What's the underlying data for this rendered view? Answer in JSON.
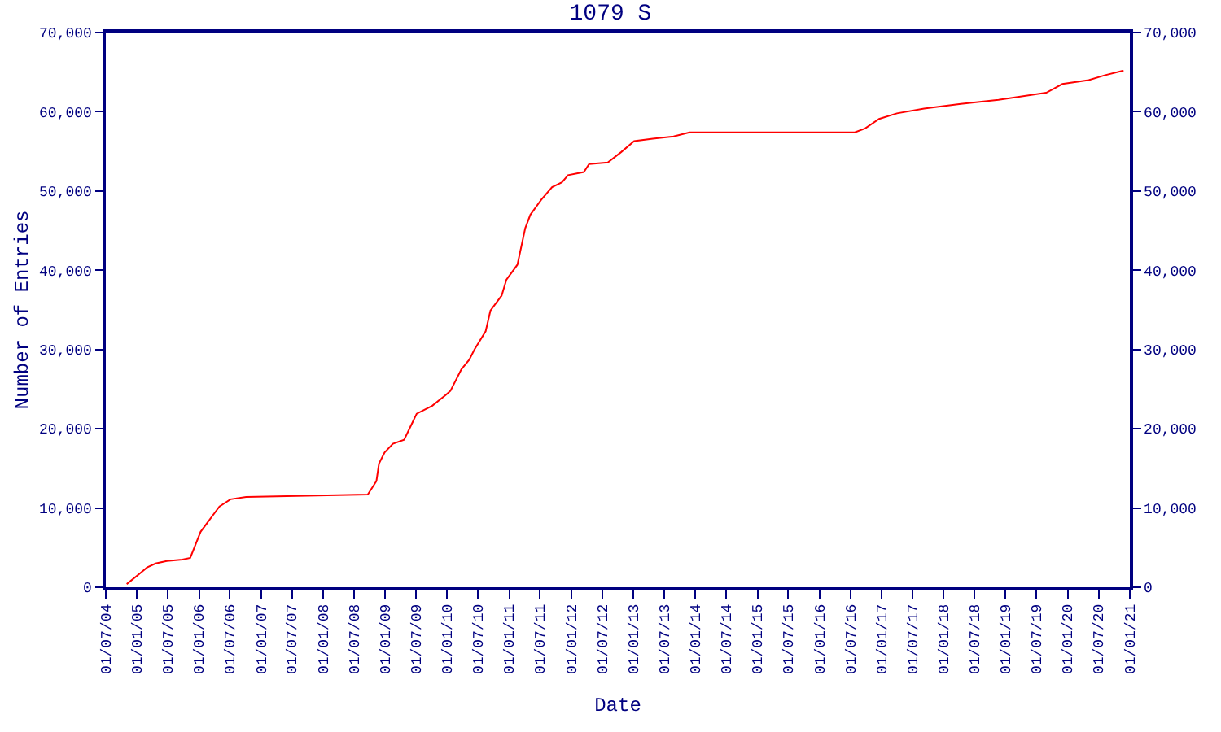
{
  "chart_data": {
    "type": "line",
    "title": "1079 S",
    "xlabel": "Date",
    "ylabel": "Number of Entries",
    "x": [
      "2004-11-01",
      "2005-01-15",
      "2005-03-01",
      "2005-04-20",
      "2005-06-25",
      "2005-09-25",
      "2005-11-10",
      "2006-01-10",
      "2006-05-01",
      "2006-07-05",
      "2006-10-05",
      "2008-09-20",
      "2008-11-10",
      "2008-11-25",
      "2008-12-28",
      "2009-02-15",
      "2009-04-22",
      "2009-07-05",
      "2009-10-05",
      "2009-12-25",
      "2010-01-20",
      "2010-03-25",
      "2010-05-10",
      "2010-06-10",
      "2010-08-15",
      "2010-09-12",
      "2010-11-17",
      "2010-12-15",
      "2011-02-18",
      "2011-04-05",
      "2011-05-05",
      "2011-07-08",
      "2011-09-10",
      "2011-11-07",
      "2011-12-13",
      "2012-03-15",
      "2012-04-15",
      "2012-08-03",
      "2012-10-20",
      "2013-01-05",
      "2013-04-25",
      "2013-08-25",
      "2013-11-27",
      "2016-07-27",
      "2016-09-26",
      "2016-12-17",
      "2017-04-01",
      "2017-09-08",
      "2018-04-12",
      "2018-11-20",
      "2019-08-28",
      "2019-12-01",
      "2020-05-04",
      "2020-08-05",
      "2020-11-25"
    ],
    "series": [
      {
        "color": "#ff0000",
        "values": [
          400,
          1700,
          2500,
          3000,
          3300,
          3500,
          3700,
          7000,
          10200,
          11100,
          11400,
          11700,
          13400,
          15600,
          17000,
          18100,
          18600,
          21900,
          22900,
          24300,
          24800,
          27500,
          28700,
          30000,
          32300,
          34900,
          36800,
          38800,
          40700,
          45300,
          47000,
          48900,
          50500,
          51100,
          52000,
          52400,
          53400,
          53600,
          54900,
          56300,
          56600,
          56900,
          57400,
          57400,
          57900,
          59100,
          59800,
          60400,
          61000,
          61500,
          62400,
          63500,
          64000,
          64600,
          65200
        ]
      }
    ],
    "xlim": [
      "2004-07-01",
      "2021-01-01"
    ],
    "xticks": [
      {
        "value": "2004-07-01",
        "label": "01/07/04"
      },
      {
        "value": "2005-01-01",
        "label": "01/01/05"
      },
      {
        "value": "2005-07-01",
        "label": "01/07/05"
      },
      {
        "value": "2006-01-01",
        "label": "01/01/06"
      },
      {
        "value": "2006-07-01",
        "label": "01/07/06"
      },
      {
        "value": "2007-01-01",
        "label": "01/01/07"
      },
      {
        "value": "2007-07-01",
        "label": "01/07/07"
      },
      {
        "value": "2008-01-01",
        "label": "01/01/08"
      },
      {
        "value": "2008-07-01",
        "label": "01/07/08"
      },
      {
        "value": "2009-01-01",
        "label": "01/01/09"
      },
      {
        "value": "2009-07-01",
        "label": "01/07/09"
      },
      {
        "value": "2010-01-01",
        "label": "01/01/10"
      },
      {
        "value": "2010-07-01",
        "label": "01/07/10"
      },
      {
        "value": "2011-01-01",
        "label": "01/01/11"
      },
      {
        "value": "2011-07-01",
        "label": "01/07/11"
      },
      {
        "value": "2012-01-01",
        "label": "01/01/12"
      },
      {
        "value": "2012-07-01",
        "label": "01/07/12"
      },
      {
        "value": "2013-01-01",
        "label": "01/01/13"
      },
      {
        "value": "2013-07-01",
        "label": "01/07/13"
      },
      {
        "value": "2014-01-01",
        "label": "01/01/14"
      },
      {
        "value": "2014-07-01",
        "label": "01/07/14"
      },
      {
        "value": "2015-01-01",
        "label": "01/01/15"
      },
      {
        "value": "2015-07-01",
        "label": "01/07/15"
      },
      {
        "value": "2016-01-01",
        "label": "01/01/16"
      },
      {
        "value": "2016-07-01",
        "label": "01/07/16"
      },
      {
        "value": "2017-01-01",
        "label": "01/01/17"
      },
      {
        "value": "2017-07-01",
        "label": "01/07/17"
      },
      {
        "value": "2018-01-01",
        "label": "01/01/18"
      },
      {
        "value": "2018-07-01",
        "label": "01/07/18"
      },
      {
        "value": "2019-01-01",
        "label": "01/01/19"
      },
      {
        "value": "2019-07-01",
        "label": "01/07/19"
      },
      {
        "value": "2020-01-01",
        "label": "01/01/20"
      },
      {
        "value": "2020-07-01",
        "label": "01/07/20"
      },
      {
        "value": "2021-01-01",
        "label": "01/01/21"
      }
    ],
    "ylim": [
      0,
      70000
    ],
    "yticks": [
      0,
      {
        "value": 10000,
        "label": "10,000"
      },
      {
        "value": 20000,
        "label": "20,000"
      },
      {
        "value": 30000,
        "label": "30,000"
      },
      {
        "value": 40000,
        "label": "40,000"
      },
      {
        "value": 50000,
        "label": "50,000"
      },
      {
        "value": 60000,
        "label": "60,000"
      },
      {
        "value": 70000,
        "label": "70,000"
      }
    ],
    "y2lim": [
      0,
      70000
    ],
    "y2ticks": [
      0,
      {
        "value": 10000,
        "label": "10,000"
      },
      {
        "value": 20000,
        "label": "20,000"
      },
      {
        "value": 30000,
        "label": "30,000"
      },
      {
        "value": 40000,
        "label": "40,000"
      },
      {
        "value": 50000,
        "label": "50,000"
      },
      {
        "value": 60000,
        "label": "60,000"
      },
      {
        "value": 70000,
        "label": "70,000"
      }
    ],
    "marker": "none",
    "line_style": "solid"
  }
}
